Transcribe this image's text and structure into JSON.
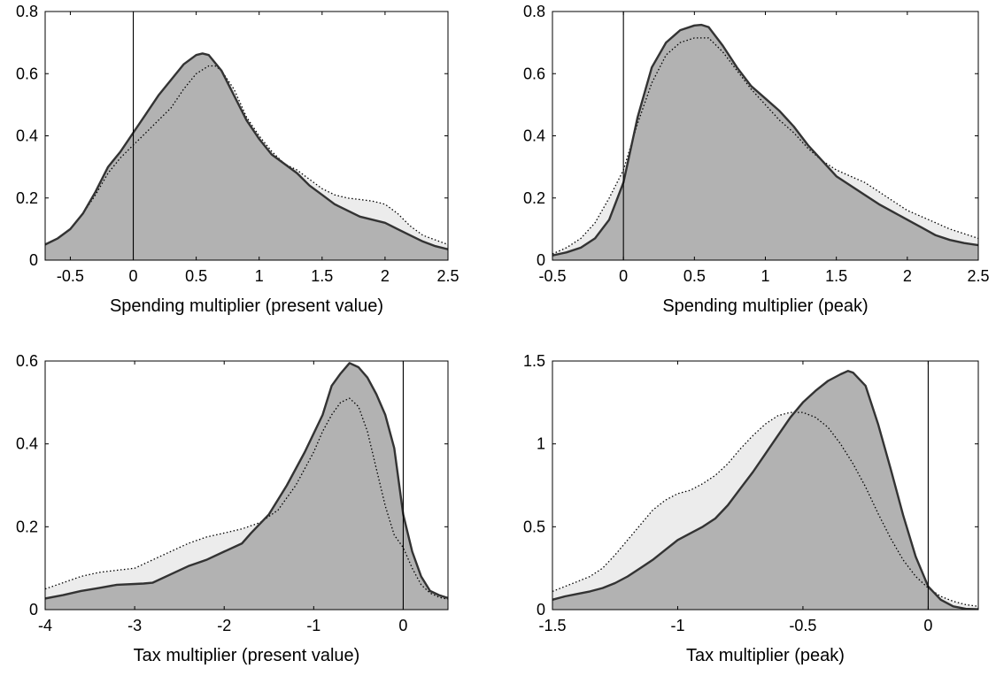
{
  "chart_data": [
    {
      "type": "area",
      "xlabel": "Spending multiplier (present value)",
      "ylabel": "",
      "xlim": [
        -0.7,
        2.5
      ],
      "ylim": [
        0,
        0.8
      ],
      "xticks": [
        -0.5,
        0,
        0.5,
        1,
        1.5,
        2,
        2.5
      ],
      "xtick_labels": [
        "-0.5",
        "0",
        "0.5",
        "1",
        "1.5",
        "2",
        "2.5"
      ],
      "yticks": [
        0,
        0.2,
        0.4,
        0.6,
        0.8
      ],
      "ytick_labels": [
        "0",
        "0.2",
        "0.4",
        "0.6",
        "0.8"
      ],
      "vline_x": 0,
      "grid": false,
      "series": [
        {
          "style": "solid",
          "x": [
            -0.7,
            -0.6,
            -0.5,
            -0.4,
            -0.3,
            -0.2,
            -0.1,
            0,
            0.1,
            0.2,
            0.3,
            0.4,
            0.5,
            0.55,
            0.6,
            0.7,
            0.8,
            0.9,
            1.0,
            1.1,
            1.2,
            1.3,
            1.4,
            1.5,
            1.6,
            1.7,
            1.8,
            1.9,
            2.0,
            2.1,
            2.2,
            2.3,
            2.4,
            2.5
          ],
          "y": [
            0.05,
            0.07,
            0.1,
            0.15,
            0.22,
            0.3,
            0.35,
            0.41,
            0.47,
            0.53,
            0.58,
            0.63,
            0.66,
            0.665,
            0.66,
            0.61,
            0.53,
            0.45,
            0.39,
            0.34,
            0.31,
            0.28,
            0.24,
            0.21,
            0.18,
            0.16,
            0.14,
            0.13,
            0.12,
            0.1,
            0.08,
            0.06,
            0.045,
            0.035
          ]
        },
        {
          "style": "dotted",
          "x": [
            -0.7,
            -0.6,
            -0.5,
            -0.4,
            -0.3,
            -0.2,
            -0.1,
            0,
            0.1,
            0.2,
            0.3,
            0.4,
            0.5,
            0.6,
            0.65,
            0.7,
            0.8,
            0.9,
            1.0,
            1.1,
            1.2,
            1.3,
            1.4,
            1.5,
            1.6,
            1.7,
            1.8,
            1.9,
            2.0,
            2.1,
            2.2,
            2.3,
            2.4,
            2.5
          ],
          "y": [
            0.05,
            0.07,
            0.1,
            0.15,
            0.21,
            0.28,
            0.33,
            0.37,
            0.41,
            0.45,
            0.49,
            0.55,
            0.6,
            0.625,
            0.625,
            0.61,
            0.55,
            0.46,
            0.4,
            0.35,
            0.31,
            0.29,
            0.26,
            0.23,
            0.21,
            0.2,
            0.195,
            0.19,
            0.18,
            0.15,
            0.11,
            0.08,
            0.065,
            0.05
          ]
        }
      ]
    },
    {
      "type": "area",
      "xlabel": "Spending multiplier (peak)",
      "ylabel": "",
      "xlim": [
        -0.5,
        2.5
      ],
      "ylim": [
        0,
        0.8
      ],
      "xticks": [
        -0.5,
        0,
        0.5,
        1,
        1.5,
        2,
        2.5
      ],
      "xtick_labels": [
        "-0.5",
        "0",
        "0.5",
        "1",
        "1.5",
        "2",
        "2.5"
      ],
      "yticks": [
        0,
        0.2,
        0.4,
        0.6,
        0.8
      ],
      "ytick_labels": [
        "0",
        "0.2",
        "0.4",
        "0.6",
        "0.8"
      ],
      "vline_x": 0,
      "grid": false,
      "series": [
        {
          "style": "solid",
          "x": [
            -0.5,
            -0.4,
            -0.3,
            -0.2,
            -0.1,
            0,
            0.1,
            0.2,
            0.3,
            0.4,
            0.5,
            0.55,
            0.6,
            0.7,
            0.8,
            0.9,
            1.0,
            1.1,
            1.2,
            1.3,
            1.4,
            1.5,
            1.6,
            1.7,
            1.8,
            1.9,
            2.0,
            2.1,
            2.2,
            2.3,
            2.4,
            2.5
          ],
          "y": [
            0.015,
            0.025,
            0.04,
            0.07,
            0.13,
            0.25,
            0.46,
            0.62,
            0.7,
            0.74,
            0.755,
            0.757,
            0.75,
            0.69,
            0.62,
            0.56,
            0.52,
            0.48,
            0.43,
            0.37,
            0.32,
            0.27,
            0.24,
            0.21,
            0.18,
            0.155,
            0.13,
            0.105,
            0.08,
            0.065,
            0.055,
            0.048
          ]
        },
        {
          "style": "dotted",
          "x": [
            -0.5,
            -0.4,
            -0.3,
            -0.2,
            -0.1,
            0,
            0.1,
            0.2,
            0.3,
            0.4,
            0.5,
            0.6,
            0.7,
            0.8,
            0.9,
            1.0,
            1.1,
            1.2,
            1.3,
            1.4,
            1.5,
            1.6,
            1.7,
            1.8,
            1.9,
            2.0,
            2.1,
            2.2,
            2.3,
            2.4,
            2.5
          ],
          "y": [
            0.02,
            0.04,
            0.07,
            0.12,
            0.2,
            0.29,
            0.44,
            0.57,
            0.66,
            0.7,
            0.715,
            0.715,
            0.67,
            0.61,
            0.55,
            0.5,
            0.45,
            0.41,
            0.36,
            0.32,
            0.29,
            0.27,
            0.25,
            0.22,
            0.19,
            0.16,
            0.14,
            0.12,
            0.1,
            0.085,
            0.07
          ]
        }
      ]
    },
    {
      "type": "area",
      "xlabel": "Tax multiplier (present value)",
      "ylabel": "",
      "xlim": [
        -4,
        0.5
      ],
      "ylim": [
        0,
        0.6
      ],
      "xticks": [
        -4,
        -3,
        -2,
        -1,
        0
      ],
      "xtick_labels": [
        "-4",
        "-3",
        "-2",
        "-1",
        "0"
      ],
      "yticks": [
        0,
        0.2,
        0.4,
        0.6
      ],
      "ytick_labels": [
        "0",
        "0.2",
        "0.4",
        "0.6"
      ],
      "vline_x": 0,
      "grid": false,
      "series": [
        {
          "style": "solid",
          "x": [
            -4.0,
            -3.8,
            -3.6,
            -3.4,
            -3.2,
            -3.0,
            -2.9,
            -2.8,
            -2.6,
            -2.4,
            -2.2,
            -2.0,
            -1.8,
            -1.7,
            -1.5,
            -1.3,
            -1.1,
            -0.9,
            -0.8,
            -0.7,
            -0.6,
            -0.5,
            -0.4,
            -0.3,
            -0.2,
            -0.1,
            0.0,
            0.1,
            0.2,
            0.3,
            0.4,
            0.5
          ],
          "y": [
            0.027,
            0.035,
            0.045,
            0.052,
            0.06,
            0.062,
            0.063,
            0.065,
            0.085,
            0.105,
            0.12,
            0.14,
            0.16,
            0.185,
            0.23,
            0.3,
            0.38,
            0.47,
            0.54,
            0.57,
            0.595,
            0.585,
            0.56,
            0.52,
            0.47,
            0.39,
            0.23,
            0.14,
            0.08,
            0.045,
            0.035,
            0.028
          ]
        },
        {
          "style": "dotted",
          "x": [
            -4.0,
            -3.8,
            -3.6,
            -3.4,
            -3.2,
            -3.0,
            -2.8,
            -2.6,
            -2.4,
            -2.2,
            -2.0,
            -1.8,
            -1.6,
            -1.4,
            -1.2,
            -1.0,
            -0.9,
            -0.8,
            -0.7,
            -0.6,
            -0.5,
            -0.4,
            -0.3,
            -0.2,
            -0.1,
            0.0,
            0.1,
            0.2,
            0.3,
            0.4,
            0.5
          ],
          "y": [
            0.05,
            0.065,
            0.08,
            0.09,
            0.095,
            0.1,
            0.12,
            0.14,
            0.16,
            0.175,
            0.185,
            0.195,
            0.21,
            0.24,
            0.3,
            0.38,
            0.43,
            0.47,
            0.5,
            0.51,
            0.49,
            0.43,
            0.34,
            0.25,
            0.18,
            0.15,
            0.1,
            0.06,
            0.04,
            0.03,
            0.025
          ]
        }
      ]
    },
    {
      "type": "area",
      "xlabel": "Tax multiplier (peak)",
      "ylabel": "",
      "xlim": [
        -1.5,
        0.2
      ],
      "ylim": [
        0,
        1.5
      ],
      "xticks": [
        -1.5,
        -1,
        -0.5,
        0
      ],
      "xtick_labels": [
        "-1.5",
        "-1",
        "-0.5",
        "0"
      ],
      "yticks": [
        0,
        0.5,
        1,
        1.5
      ],
      "ytick_labels": [
        "0",
        "0.5",
        "1",
        "1.5"
      ],
      "vline_x": 0,
      "grid": false,
      "series": [
        {
          "style": "solid",
          "x": [
            -1.5,
            -1.45,
            -1.4,
            -1.35,
            -1.3,
            -1.25,
            -1.2,
            -1.15,
            -1.1,
            -1.05,
            -1.0,
            -0.95,
            -0.9,
            -0.85,
            -0.8,
            -0.75,
            -0.7,
            -0.65,
            -0.6,
            -0.55,
            -0.5,
            -0.45,
            -0.4,
            -0.35,
            -0.32,
            -0.3,
            -0.25,
            -0.2,
            -0.15,
            -0.1,
            -0.05,
            0.0,
            0.05,
            0.1,
            0.15,
            0.2
          ],
          "y": [
            0.06,
            0.08,
            0.095,
            0.11,
            0.13,
            0.16,
            0.2,
            0.25,
            0.3,
            0.36,
            0.42,
            0.46,
            0.5,
            0.55,
            0.63,
            0.73,
            0.83,
            0.94,
            1.05,
            1.16,
            1.25,
            1.32,
            1.38,
            1.42,
            1.44,
            1.43,
            1.35,
            1.12,
            0.85,
            0.57,
            0.32,
            0.14,
            0.06,
            0.02,
            0.005,
            0.002
          ]
        },
        {
          "style": "dotted",
          "x": [
            -1.5,
            -1.45,
            -1.4,
            -1.35,
            -1.3,
            -1.25,
            -1.2,
            -1.15,
            -1.1,
            -1.05,
            -1.0,
            -0.95,
            -0.9,
            -0.85,
            -0.8,
            -0.75,
            -0.7,
            -0.65,
            -0.6,
            -0.55,
            -0.5,
            -0.45,
            -0.4,
            -0.35,
            -0.3,
            -0.25,
            -0.2,
            -0.15,
            -0.1,
            -0.05,
            0.0,
            0.05,
            0.1,
            0.15,
            0.2
          ],
          "y": [
            0.11,
            0.14,
            0.17,
            0.2,
            0.25,
            0.33,
            0.42,
            0.51,
            0.6,
            0.66,
            0.7,
            0.72,
            0.76,
            0.81,
            0.88,
            0.97,
            1.05,
            1.12,
            1.17,
            1.19,
            1.19,
            1.16,
            1.1,
            1.0,
            0.88,
            0.74,
            0.58,
            0.43,
            0.3,
            0.2,
            0.13,
            0.08,
            0.05,
            0.03,
            0.02
          ]
        }
      ]
    }
  ]
}
